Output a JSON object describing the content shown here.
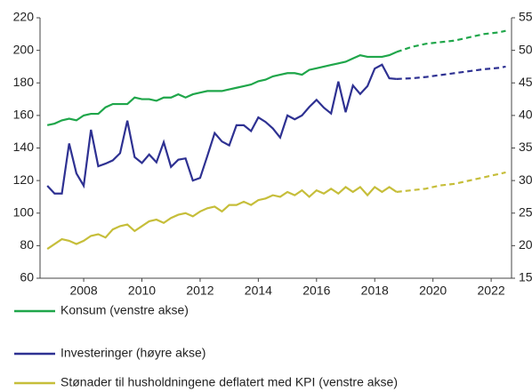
{
  "chart_data": {
    "type": "line",
    "x": [
      2006.75,
      2007,
      2007.25,
      2007.5,
      2007.75,
      2008,
      2008.25,
      2008.5,
      2008.75,
      2009,
      2009.25,
      2009.5,
      2009.75,
      2010,
      2010.25,
      2010.5,
      2010.75,
      2011,
      2011.25,
      2011.5,
      2011.75,
      2012,
      2012.25,
      2012.5,
      2012.75,
      2013,
      2013.25,
      2013.5,
      2013.75,
      2014,
      2014.25,
      2014.5,
      2014.75,
      2015,
      2015.25,
      2015.5,
      2015.75,
      2016,
      2016.25,
      2016.5,
      2016.75,
      2017,
      2017.25,
      2017.5,
      2017.75,
      2018,
      2018.25,
      2018.5,
      2018.75,
      2019.25,
      2019.75,
      2020.25,
      2020.75,
      2021.25,
      2021.75,
      2022.25,
      2022.5
    ],
    "series": [
      {
        "name": "Konsum (venstre akse)",
        "color": "#1fa64a",
        "values": [
          154,
          155,
          157,
          158,
          157,
          160,
          161,
          161,
          165,
          167,
          167,
          167,
          171,
          170,
          170,
          169,
          171,
          171,
          173,
          171,
          173,
          174,
          175,
          175,
          175,
          176,
          177,
          178,
          179,
          181,
          182,
          184,
          185,
          186,
          186,
          185,
          188,
          189,
          190,
          191,
          192,
          193,
          195,
          197,
          196,
          196,
          196,
          197,
          199,
          202,
          204,
          205,
          206,
          208,
          210,
          211,
          212
        ]
      },
      {
        "name": "Investeringer (høyre akse)",
        "color": "#2e3192",
        "axis": "y2",
        "values": [
          292,
          280,
          280,
          357,
          311,
          292,
          378,
          322,
          326,
          331,
          342,
          392,
          336,
          327,
          340,
          328,
          359,
          321,
          332,
          334,
          300,
          304,
          338,
          373,
          360,
          354,
          385,
          385,
          376,
          397,
          390,
          380,
          366,
          400,
          394,
          400,
          413,
          424,
          412,
          403,
          452,
          405,
          446,
          433,
          445,
          472,
          478,
          457,
          456,
          457,
          459,
          462,
          465,
          468,
          471,
          473,
          475
        ]
      },
      {
        "name": "Stønader til husholdningene deflatert med KPI (venstre akse)",
        "color": "#c6be3a",
        "values": [
          78,
          81,
          84,
          83,
          81,
          83,
          86,
          87,
          85,
          90,
          92,
          93,
          89,
          92,
          95,
          96,
          94,
          97,
          99,
          100,
          98,
          101,
          103,
          104,
          101,
          105,
          105,
          107,
          105,
          108,
          109,
          111,
          110,
          113,
          111,
          114,
          110,
          114,
          112,
          115,
          112,
          116,
          113,
          116,
          111,
          116,
          113,
          116,
          113,
          114,
          115,
          117,
          118,
          120,
          122,
          124,
          125
        ]
      }
    ],
    "dashed_from": 2018.75,
    "xlim": [
      2006.5,
      2022.7
    ],
    "xticks": [
      2008,
      2010,
      2012,
      2014,
      2016,
      2018,
      2020,
      2022
    ],
    "ylim": [
      60,
      220
    ],
    "yticks": [
      60,
      80,
      100,
      120,
      140,
      160,
      180,
      200,
      220
    ],
    "y2lim": [
      150,
      550
    ],
    "y2ticks": [
      150,
      200,
      250,
      300,
      350,
      400,
      450,
      500,
      550
    ]
  }
}
